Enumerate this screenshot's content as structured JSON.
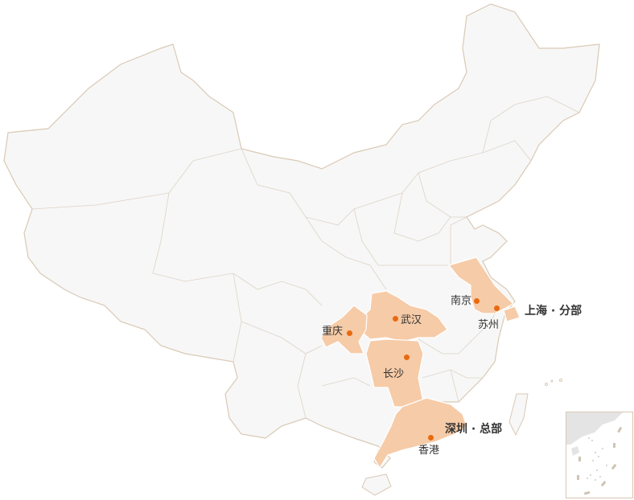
{
  "colors": {
    "land": "#f7f7f7",
    "border": "#d9c9b5",
    "highlight": "#f6cba7",
    "dot": "#e86a10"
  },
  "highlighted_regions": [
    "江苏",
    "上海",
    "湖北",
    "重庆",
    "湖南",
    "广东"
  ],
  "cities": {
    "nanjing": "南京",
    "suzhou": "苏州",
    "wuhan": "武汉",
    "chongqing": "重庆",
    "changsha": "长沙",
    "hongkong": "香港"
  },
  "offices": {
    "shanghai": "上海 · 分部",
    "shenzhen": "深圳 · 总部"
  }
}
